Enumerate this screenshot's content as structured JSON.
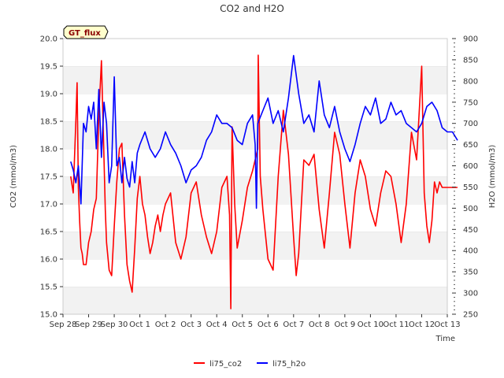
{
  "chart_data": {
    "type": "line",
    "title": "CO2 and H2O",
    "site_label": "GT_flux",
    "xlabel": "Time",
    "ylabel_left": "CO2 (mmol/m3)",
    "ylabel_right": "H2O (mmol/m3)",
    "x_tick_labels": [
      "Sep 28",
      "Sep 29",
      "Sep 30",
      "Oct 1",
      "Oct 2",
      "Oct 3",
      "Oct 4",
      "Oct 5",
      "Oct 6",
      "Oct 7",
      "Oct 8",
      "Oct 9",
      "Oct 10",
      "Oct 11",
      "Oct 12",
      "Oct 13"
    ],
    "xlim": [
      0,
      15
    ],
    "ylim_left": [
      15.0,
      20.0
    ],
    "ylim_right": [
      250,
      900
    ],
    "y_ticks_left": [
      "15.0",
      "15.5",
      "16.0",
      "16.5",
      "17.0",
      "17.5",
      "18.0",
      "18.5",
      "19.0",
      "19.5",
      "20.0"
    ],
    "y_ticks_right": [
      "250",
      "300",
      "350",
      "400",
      "450",
      "500",
      "550",
      "600",
      "650",
      "700",
      "750",
      "800",
      "850",
      "900"
    ],
    "grid": "horizontal bands",
    "legend_position": "bottom-center",
    "series": [
      {
        "name": "li75_co2",
        "axis": "left",
        "color": "#ff0000",
        "x": [
          0.3,
          0.4,
          0.5,
          0.55,
          0.6,
          0.65,
          0.7,
          0.75,
          0.8,
          0.9,
          1.0,
          1.1,
          1.2,
          1.3,
          1.4,
          1.5,
          1.6,
          1.65,
          1.7,
          1.8,
          1.9,
          2.0,
          2.1,
          2.2,
          2.3,
          2.4,
          2.5,
          2.6,
          2.7,
          2.8,
          2.9,
          3.0,
          3.1,
          3.2,
          3.3,
          3.4,
          3.5,
          3.6,
          3.7,
          3.8,
          3.9,
          4.0,
          4.2,
          4.4,
          4.6,
          4.8,
          5.0,
          5.2,
          5.4,
          5.6,
          5.8,
          6.0,
          6.2,
          6.4,
          6.5,
          6.55,
          6.6,
          6.7,
          6.8,
          7.0,
          7.2,
          7.4,
          7.6,
          7.62,
          7.7,
          7.8,
          8.0,
          8.2,
          8.4,
          8.6,
          8.8,
          9.0,
          9.1,
          9.2,
          9.4,
          9.6,
          9.8,
          10.0,
          10.2,
          10.4,
          10.6,
          10.8,
          11.0,
          11.2,
          11.4,
          11.6,
          11.8,
          12.0,
          12.2,
          12.4,
          12.6,
          12.8,
          13.0,
          13.2,
          13.4,
          13.6,
          13.8,
          14.0,
          14.1,
          14.2,
          14.3,
          14.4,
          14.5,
          14.6,
          14.7,
          14.8,
          15.0,
          15.2,
          15.4
        ],
        "y": [
          17.5,
          17.2,
          18.5,
          19.2,
          17.3,
          16.7,
          16.2,
          16.1,
          15.9,
          15.9,
          16.3,
          16.5,
          16.9,
          17.1,
          18.6,
          19.6,
          17.8,
          16.9,
          16.3,
          15.8,
          15.7,
          16.6,
          17.4,
          18.0,
          18.1,
          16.8,
          15.9,
          15.6,
          15.4,
          16.2,
          17.1,
          17.5,
          17.0,
          16.8,
          16.4,
          16.1,
          16.3,
          16.6,
          16.8,
          16.5,
          16.8,
          17.0,
          17.2,
          16.3,
          16.0,
          16.4,
          17.2,
          17.4,
          16.8,
          16.4,
          16.1,
          16.5,
          17.3,
          17.5,
          16.8,
          15.1,
          18.4,
          17.0,
          16.2,
          16.7,
          17.3,
          17.6,
          18.0,
          19.7,
          17.5,
          16.9,
          16.0,
          15.8,
          17.5,
          18.7,
          17.9,
          16.4,
          15.7,
          16.1,
          17.8,
          17.7,
          17.9,
          16.9,
          16.2,
          17.2,
          18.3,
          17.9,
          17.0,
          16.2,
          17.2,
          17.8,
          17.5,
          16.9,
          16.6,
          17.2,
          17.6,
          17.5,
          17.0,
          16.3,
          17.0,
          18.3,
          17.8,
          19.5,
          17.2,
          16.6,
          16.3,
          16.7,
          17.4,
          17.2,
          17.4,
          17.3,
          17.3,
          17.3,
          17.3
        ]
      },
      {
        "name": "li75_h2o",
        "axis": "right",
        "color": "#0000ff",
        "x": [
          0.3,
          0.4,
          0.5,
          0.6,
          0.7,
          0.8,
          0.9,
          1.0,
          1.1,
          1.2,
          1.3,
          1.4,
          1.5,
          1.6,
          1.7,
          1.8,
          1.9,
          2.0,
          2.1,
          2.2,
          2.3,
          2.4,
          2.5,
          2.6,
          2.7,
          2.8,
          2.9,
          3.0,
          3.2,
          3.4,
          3.6,
          3.8,
          4.0,
          4.2,
          4.4,
          4.6,
          4.8,
          5.0,
          5.2,
          5.4,
          5.6,
          5.8,
          6.0,
          6.2,
          6.4,
          6.6,
          6.8,
          7.0,
          7.2,
          7.4,
          7.5,
          7.55,
          7.6,
          7.8,
          8.0,
          8.2,
          8.4,
          8.6,
          8.8,
          9.0,
          9.2,
          9.4,
          9.6,
          9.8,
          10.0,
          10.2,
          10.4,
          10.6,
          10.8,
          11.0,
          11.2,
          11.4,
          11.6,
          11.8,
          12.0,
          12.2,
          12.4,
          12.6,
          12.8,
          13.0,
          13.2,
          13.4,
          13.6,
          13.8,
          14.0,
          14.2,
          14.4,
          14.6,
          14.8,
          15.0,
          15.2,
          15.4
        ],
        "y": [
          610,
          590,
          560,
          600,
          510,
          700,
          680,
          740,
          710,
          750,
          640,
          780,
          620,
          750,
          700,
          560,
          600,
          810,
          600,
          620,
          560,
          620,
          570,
          550,
          610,
          560,
          630,
          650,
          680,
          640,
          620,
          640,
          680,
          650,
          630,
          600,
          560,
          590,
          600,
          620,
          660,
          680,
          720,
          700,
          700,
          690,
          660,
          650,
          700,
          720,
          650,
          500,
          700,
          730,
          760,
          700,
          730,
          680,
          760,
          860,
          770,
          700,
          720,
          680,
          800,
          720,
          690,
          740,
          680,
          640,
          610,
          650,
          700,
          740,
          720,
          760,
          700,
          710,
          750,
          720,
          730,
          700,
          690,
          680,
          700,
          740,
          750,
          730,
          690,
          680,
          680,
          660
        ]
      }
    ]
  }
}
